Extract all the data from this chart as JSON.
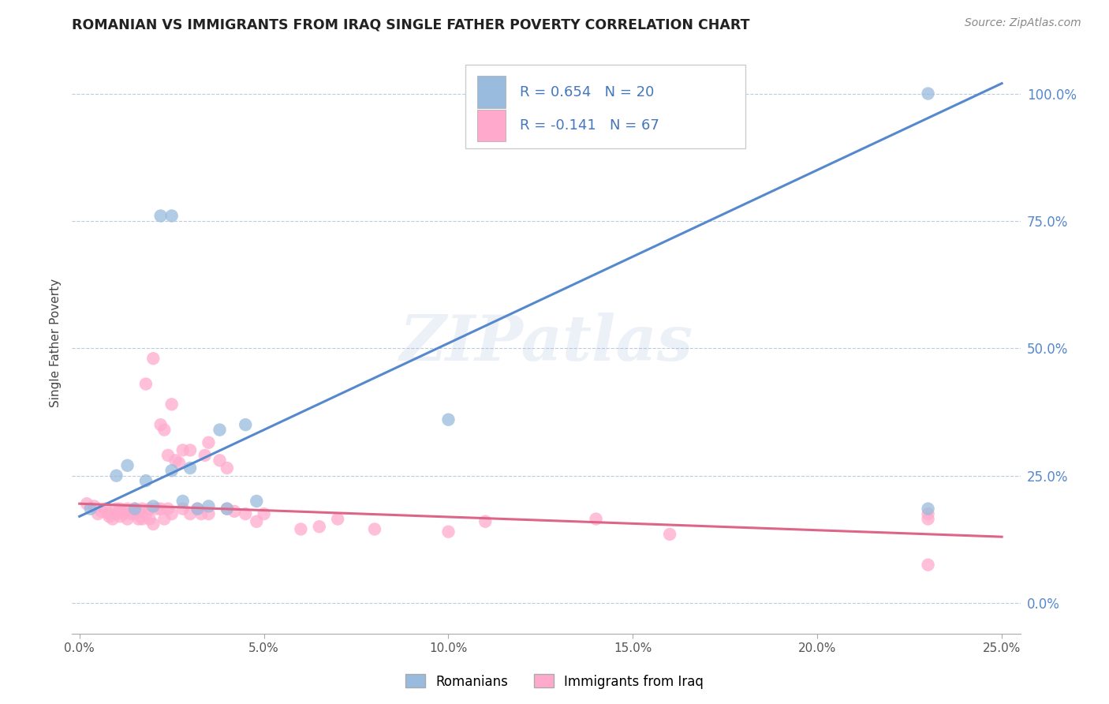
{
  "title": "ROMANIAN VS IMMIGRANTS FROM IRAQ SINGLE FATHER POVERTY CORRELATION CHART",
  "source": "Source: ZipAtlas.com",
  "ylabel": "Single Father Poverty",
  "watermark": "ZIPatlas",
  "legend_r1": "R = 0.654",
  "legend_n1": "N = 20",
  "legend_r2": "R = -0.141",
  "legend_n2": "N = 67",
  "legend_label1": "Romanians",
  "legend_label2": "Immigrants from Iraq",
  "blue_color": "#99BBDD",
  "pink_color": "#FFAACC",
  "line_blue": "#5588CC",
  "line_pink": "#DD6688",
  "ytick_labels": [
    "0.0%",
    "25.0%",
    "50.0%",
    "75.0%",
    "100.0%"
  ],
  "ytick_values": [
    0.0,
    0.25,
    0.5,
    0.75,
    1.0
  ],
  "xtick_values": [
    0.0,
    0.05,
    0.1,
    0.15,
    0.2,
    0.25
  ],
  "xtick_labels": [
    "0.0%",
    "5.0%",
    "10.0%",
    "15.0%",
    "20.0%",
    "25.0%"
  ],
  "xmin": -0.002,
  "xmax": 0.255,
  "ymin": -0.06,
  "ymax": 1.08,
  "blue_line_x": [
    0.0,
    0.25
  ],
  "blue_line_y": [
    0.17,
    1.02
  ],
  "pink_line_x": [
    0.0,
    0.25
  ],
  "pink_line_y": [
    0.195,
    0.13
  ],
  "blue_scatter_x": [
    0.003,
    0.01,
    0.013,
    0.015,
    0.018,
    0.02,
    0.022,
    0.025,
    0.025,
    0.028,
    0.03,
    0.032,
    0.035,
    0.038,
    0.04,
    0.045,
    0.048,
    0.1,
    0.23,
    0.23
  ],
  "blue_scatter_y": [
    0.185,
    0.25,
    0.27,
    0.185,
    0.24,
    0.19,
    0.76,
    0.76,
    0.26,
    0.2,
    0.265,
    0.185,
    0.19,
    0.34,
    0.185,
    0.35,
    0.2,
    0.36,
    0.185,
    1.0
  ],
  "pink_scatter_x": [
    0.002,
    0.004,
    0.005,
    0.006,
    0.007,
    0.008,
    0.008,
    0.009,
    0.01,
    0.01,
    0.011,
    0.011,
    0.012,
    0.012,
    0.013,
    0.013,
    0.014,
    0.015,
    0.015,
    0.016,
    0.016,
    0.017,
    0.017,
    0.018,
    0.018,
    0.019,
    0.019,
    0.02,
    0.02,
    0.021,
    0.022,
    0.022,
    0.023,
    0.023,
    0.024,
    0.024,
    0.025,
    0.025,
    0.026,
    0.027,
    0.028,
    0.028,
    0.03,
    0.03,
    0.032,
    0.033,
    0.034,
    0.035,
    0.035,
    0.038,
    0.04,
    0.04,
    0.042,
    0.045,
    0.048,
    0.05,
    0.06,
    0.065,
    0.07,
    0.08,
    0.1,
    0.11,
    0.14,
    0.16,
    0.23,
    0.23,
    0.23
  ],
  "pink_scatter_y": [
    0.195,
    0.19,
    0.175,
    0.18,
    0.185,
    0.17,
    0.175,
    0.165,
    0.175,
    0.185,
    0.17,
    0.185,
    0.175,
    0.18,
    0.165,
    0.185,
    0.175,
    0.185,
    0.175,
    0.165,
    0.18,
    0.185,
    0.165,
    0.43,
    0.175,
    0.185,
    0.165,
    0.155,
    0.48,
    0.185,
    0.185,
    0.35,
    0.165,
    0.34,
    0.185,
    0.29,
    0.175,
    0.39,
    0.28,
    0.275,
    0.185,
    0.3,
    0.175,
    0.3,
    0.185,
    0.175,
    0.29,
    0.315,
    0.175,
    0.28,
    0.185,
    0.265,
    0.18,
    0.175,
    0.16,
    0.175,
    0.145,
    0.15,
    0.165,
    0.145,
    0.14,
    0.16,
    0.165,
    0.135,
    0.175,
    0.165,
    0.075
  ]
}
